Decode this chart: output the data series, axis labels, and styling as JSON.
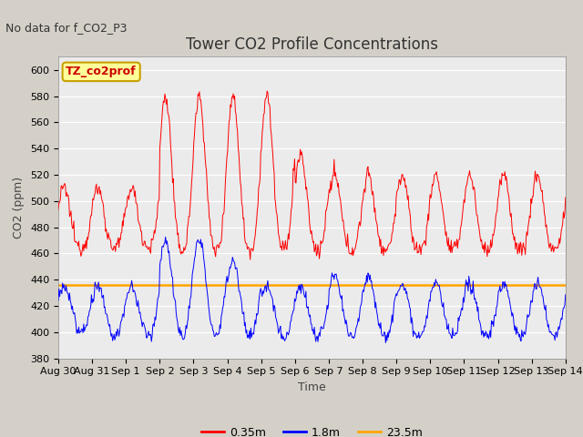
{
  "title": "Tower CO2 Profile Concentrations",
  "subtitle": "No data for f_CO2_P3",
  "xlabel": "Time",
  "ylabel": "CO2 (ppm)",
  "ylim": [
    380,
    610
  ],
  "yticks": [
    380,
    400,
    420,
    440,
    460,
    480,
    500,
    520,
    540,
    560,
    580,
    600
  ],
  "legend_label": "TZ_co2prof",
  "series": {
    "red_label": "0.35m",
    "blue_label": "1.8m",
    "orange_label": "23.5m"
  },
  "colors": {
    "red": "#ff0000",
    "blue": "#0000ff",
    "orange": "#ffa500",
    "fig_bg": "#d4d0c8",
    "plot_bg": "#ebebeb",
    "legend_bg": "#ffff99",
    "legend_border": "#c8a000"
  },
  "x_tick_labels": [
    "Aug 30",
    "Aug 31",
    "Sep 1",
    "Sep 2",
    "Sep 3",
    "Sep 4",
    "Sep 5",
    "Sep 6",
    "Sep 7",
    "Sep 8",
    "Sep 9",
    "Sep 10",
    "Sep 11",
    "Sep 12",
    "Sep 13",
    "Sep 14"
  ],
  "orange_line_value": 436,
  "font_size_title": 12,
  "font_size_labels": 9,
  "font_size_ticks": 8,
  "font_size_subtitle": 9,
  "font_size_legend_label": 9,
  "font_size_legend": 9
}
